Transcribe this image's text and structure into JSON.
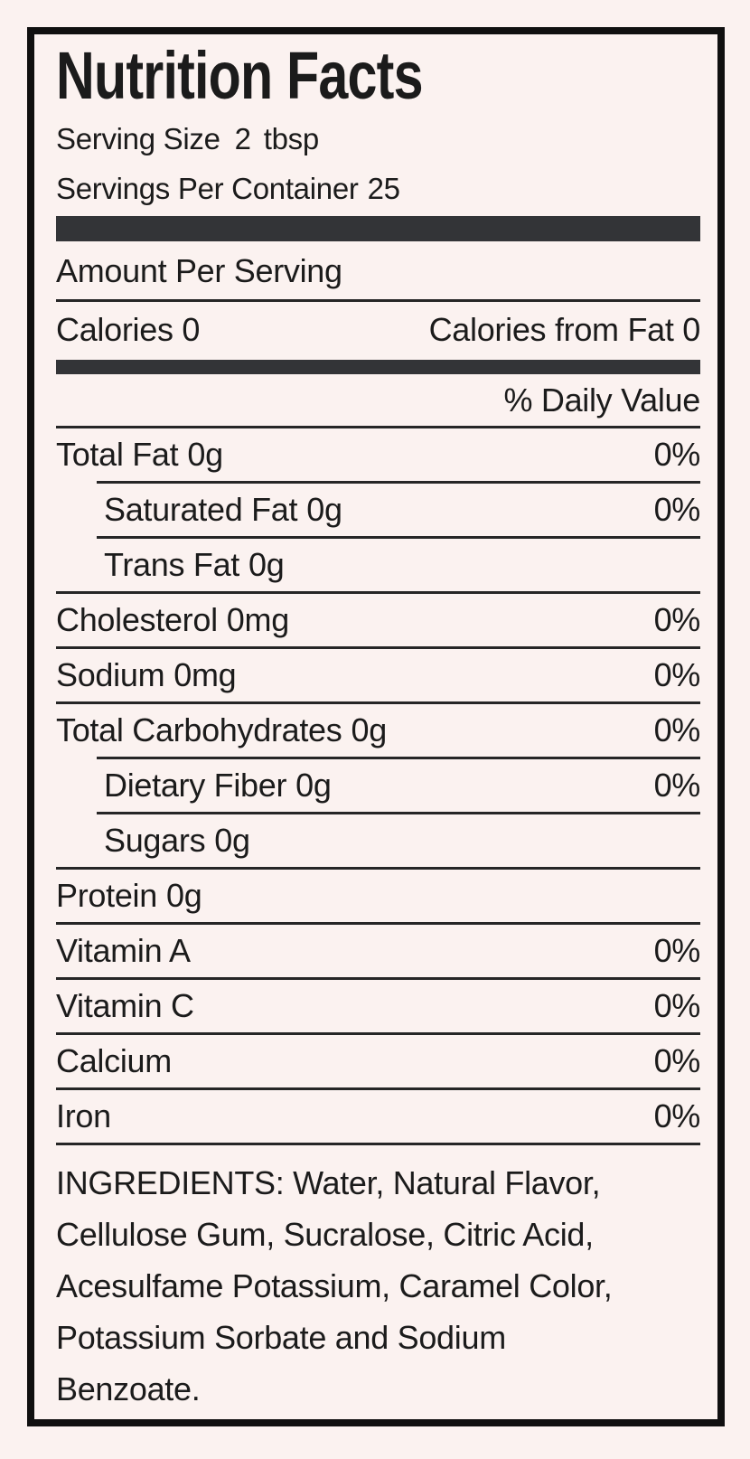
{
  "colors": {
    "background": "#fbf2f0",
    "border": "#101010",
    "thick_bar": "#333437",
    "rule": "#262626",
    "text": "#1b1b1b"
  },
  "header": {
    "title": "Nutrition Facts",
    "serving_size": {
      "label": "Serving Size",
      "value": "2",
      "unit": "tbsp"
    },
    "servings_per_container": {
      "label": "Servings Per Container",
      "value": "25"
    }
  },
  "amount_per_serving_label": "Amount Per Serving",
  "calories": {
    "label": "Calories",
    "value": "0",
    "from_fat_label": "Calories from Fat",
    "from_fat_value": "0"
  },
  "daily_value_header": "% Daily Value",
  "nutrients": [
    {
      "name": "Total Fat",
      "amount": "0g",
      "pct": "0%"
    },
    {
      "name": "Saturated Fat",
      "amount": "0g",
      "pct": "0%"
    },
    {
      "name": "Trans Fat",
      "amount": "0g",
      "pct": ""
    },
    {
      "name": "Cholesterol",
      "amount": "0mg",
      "pct": "0%"
    },
    {
      "name": "Sodium",
      "amount": "0mg",
      "pct": "0%"
    },
    {
      "name": "Total Carbohydrates",
      "amount": "0g",
      "pct": "0%"
    },
    {
      "name": "Dietary Fiber",
      "amount": "0g",
      "pct": "0%"
    },
    {
      "name": "Sugars",
      "amount": "0g",
      "pct": ""
    },
    {
      "name": "Protein",
      "amount": "0g",
      "pct": ""
    },
    {
      "name": "Vitamin A",
      "amount": "",
      "pct": "0%"
    },
    {
      "name": "Vitamin C",
      "amount": "",
      "pct": "0%"
    },
    {
      "name": "Calcium",
      "amount": "",
      "pct": "0%"
    },
    {
      "name": "Iron",
      "amount": "",
      "pct": "0%"
    }
  ],
  "ingredients": {
    "lines": [
      "INGREDIENTS: Water, Natural Flavor,",
      "Cellulose Gum, Sucralose, Citric Acid,",
      "Acesulfame Potassium, Caramel Color,",
      "Potassium Sorbate and Sodium",
      "Benzoate."
    ]
  }
}
